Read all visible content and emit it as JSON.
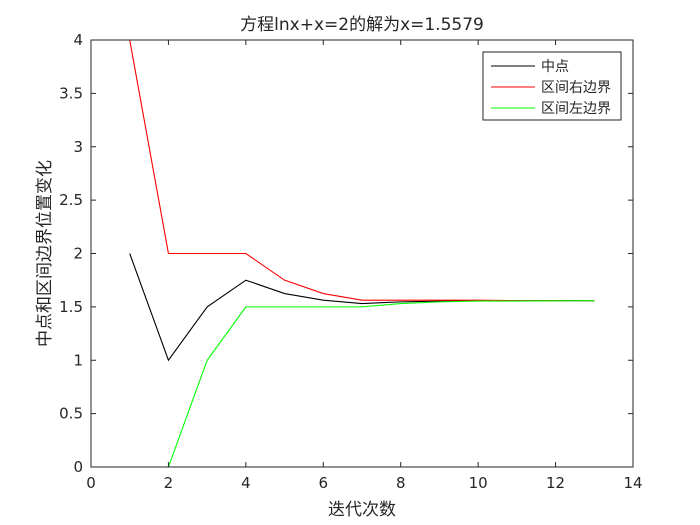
{
  "chart_data": {
    "type": "line",
    "title": "方程lnx+x=2的解为x=1.5579",
    "xlabel": "迭代次数",
    "ylabel": "中点和区间边界位置变化",
    "xlim": [
      0,
      14
    ],
    "ylim": [
      0,
      4
    ],
    "xticks": [
      0,
      2,
      4,
      6,
      8,
      10,
      12,
      14
    ],
    "yticks": [
      0,
      0.5,
      1,
      1.5,
      2,
      2.5,
      3,
      3.5,
      4
    ],
    "grid": false,
    "legend_position": "top-right",
    "series": [
      {
        "name": "中点",
        "color": "#000000",
        "x": [
          1,
          2,
          3,
          4,
          5,
          6,
          7,
          8,
          9,
          10,
          11,
          12,
          13
        ],
        "y": [
          2,
          1,
          1.5,
          1.75,
          1.625,
          1.5625,
          1.53125,
          1.546875,
          1.5546875,
          1.55859375,
          1.556640625,
          1.5576171875,
          1.55810546875
        ]
      },
      {
        "name": "区间右边界",
        "color": "#ff0000",
        "x": [
          1,
          2,
          3,
          4,
          5,
          6,
          7,
          8,
          9,
          10,
          11,
          12,
          13
        ],
        "y": [
          4,
          2,
          2,
          2,
          1.75,
          1.625,
          1.5625,
          1.5625,
          1.5625,
          1.5625,
          1.55859375,
          1.55859375,
          1.55859375
        ]
      },
      {
        "name": "区间左边界",
        "color": "#00ff00",
        "x": [
          1,
          2,
          3,
          4,
          5,
          6,
          7,
          8,
          9,
          10,
          11,
          12,
          13
        ],
        "y": [
          0,
          0,
          1,
          1.5,
          1.5,
          1.5,
          1.5,
          1.53125,
          1.546875,
          1.5546875,
          1.5546875,
          1.556640625,
          1.5576171875
        ]
      }
    ]
  }
}
